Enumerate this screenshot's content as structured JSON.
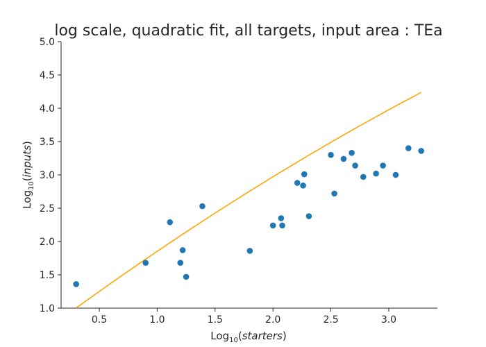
{
  "chart_data": {
    "type": "scatter",
    "title": "log scale, quadratic fit, all targets, input area : TEa",
    "xlabel": {
      "prefix": "Log",
      "sub": "10",
      "var": "starters"
    },
    "ylabel": {
      "prefix": "Log",
      "sub": "10",
      "var": "inputs"
    },
    "xlim": [
      0.17,
      3.42
    ],
    "ylim": [
      1.0,
      5.0
    ],
    "xticks": [
      0.5,
      1.0,
      1.5,
      2.0,
      2.5,
      3.0
    ],
    "xtick_labels": [
      "0.5",
      "1.0",
      "1.5",
      "2.0",
      "2.5",
      "3.0"
    ],
    "yticks": [
      1.0,
      1.5,
      2.0,
      2.5,
      3.0,
      3.5,
      4.0,
      4.5,
      5.0
    ],
    "ytick_labels": [
      "1.0",
      "1.5",
      "2.0",
      "2.5",
      "3.0",
      "3.5",
      "4.0",
      "4.5",
      "5.0"
    ],
    "grid": false,
    "point_color": "#1f77b4",
    "fit_color": "#ffa500",
    "points": [
      [
        0.3,
        1.36
      ],
      [
        0.9,
        1.68
      ],
      [
        1.11,
        2.29
      ],
      [
        1.2,
        1.68
      ],
      [
        1.22,
        1.87
      ],
      [
        1.25,
        1.47
      ],
      [
        1.39,
        2.53
      ],
      [
        1.8,
        1.86
      ],
      [
        2.0,
        2.24
      ],
      [
        2.07,
        2.35
      ],
      [
        2.08,
        2.24
      ],
      [
        2.21,
        2.88
      ],
      [
        2.26,
        2.84
      ],
      [
        2.27,
        3.01
      ],
      [
        2.31,
        2.38
      ],
      [
        2.5,
        3.3
      ],
      [
        2.53,
        2.72
      ],
      [
        2.61,
        3.24
      ],
      [
        2.68,
        3.33
      ],
      [
        2.71,
        3.14
      ],
      [
        2.78,
        2.97
      ],
      [
        2.89,
        3.02
      ],
      [
        2.95,
        3.14
      ],
      [
        3.06,
        3.0
      ],
      [
        3.17,
        3.4
      ],
      [
        3.28,
        3.36
      ]
    ],
    "fit": {
      "x_range": [
        0.3,
        3.28
      ],
      "coefficients": [
        0.62,
        1.29,
        -0.057
      ]
    }
  }
}
